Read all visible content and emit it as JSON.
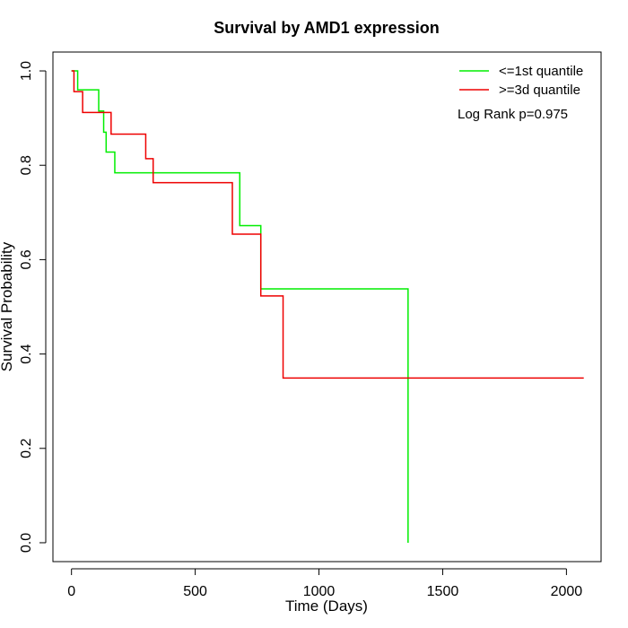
{
  "chart_data": {
    "type": "line",
    "title": "Survival by AMD1 expression",
    "xlabel": "Time (Days)",
    "ylabel": "Survival Probability",
    "xlim": [
      -75,
      2140
    ],
    "ylim": [
      -0.04,
      1.04
    ],
    "xticks": [
      0,
      500,
      1000,
      1500,
      2000
    ],
    "yticks": [
      0.0,
      0.2,
      0.4,
      0.6,
      0.8,
      1.0
    ],
    "xtick_labels": [
      "0",
      "500",
      "1000",
      "1500",
      "2000"
    ],
    "ytick_labels": [
      "0.0",
      "0.2",
      "0.4",
      "0.6",
      "0.8",
      "1.0"
    ],
    "grid": false,
    "legend_position": "top-right",
    "annotation": "Log Rank p=0.975",
    "series": [
      {
        "name": "<=1st quantile",
        "color": "#00ee00",
        "step": true,
        "x": [
          0,
          25,
          110,
          130,
          140,
          175,
          680,
          765,
          1360,
          1360
        ],
        "y": [
          1.0,
          0.96,
          0.915,
          0.87,
          0.828,
          0.784,
          0.672,
          0.538,
          0.538,
          0.0
        ]
      },
      {
        "name": ">=3d quantile",
        "color": "#ee0000",
        "step": true,
        "x": [
          0,
          10,
          45,
          150,
          160,
          300,
          330,
          650,
          765,
          855,
          2070
        ],
        "y": [
          1.0,
          0.956,
          0.912,
          0.912,
          0.866,
          0.814,
          0.763,
          0.654,
          0.523,
          0.349,
          0.349
        ]
      }
    ]
  }
}
